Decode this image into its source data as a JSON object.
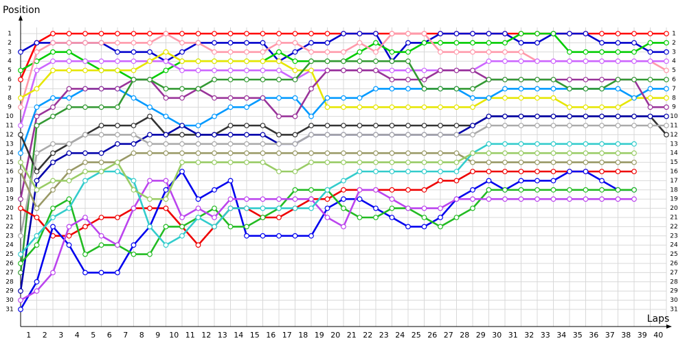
{
  "chart_data": {
    "type": "line",
    "y_label": "Position",
    "x_label": "Laps",
    "x": [
      0,
      1,
      2,
      3,
      4,
      5,
      6,
      7,
      8,
      9,
      10,
      11,
      12,
      13,
      14,
      15,
      16,
      17,
      18,
      19,
      20,
      21,
      22,
      23,
      24,
      25,
      26,
      27,
      28,
      29,
      30,
      31,
      32,
      33,
      34,
      35,
      36,
      37,
      38,
      39,
      40
    ],
    "xlim": [
      0,
      40
    ],
    "xticks": [
      1,
      2,
      3,
      4,
      5,
      6,
      7,
      8,
      9,
      10,
      11,
      12,
      13,
      14,
      15,
      16,
      17,
      18,
      19,
      20,
      21,
      22,
      23,
      24,
      25,
      26,
      27,
      28,
      29,
      30,
      31,
      32,
      33,
      34,
      35,
      36,
      37,
      38,
      39,
      40
    ],
    "ylim": [
      31,
      1
    ],
    "yticks": [
      1,
      2,
      3,
      4,
      5,
      6,
      7,
      8,
      9,
      10,
      11,
      12,
      13,
      14,
      15,
      16,
      17,
      18,
      19,
      20,
      21,
      22,
      23,
      24,
      25,
      26,
      27,
      28,
      29,
      30,
      31
    ],
    "grid": true,
    "series": [
      {
        "color": "#ff0000",
        "values": [
          6,
          2,
          1,
          1,
          1,
          1,
          1,
          1,
          1,
          1,
          1,
          1,
          1,
          1,
          1,
          1,
          1,
          1,
          1,
          1,
          1,
          1,
          1,
          1,
          1,
          1,
          1,
          1,
          1,
          1,
          1,
          1,
          1,
          1,
          1,
          1,
          1,
          1,
          1,
          1,
          1
        ]
      },
      {
        "color": "#0000cc",
        "values": [
          3,
          2,
          2,
          2,
          2,
          2,
          3,
          3,
          3,
          4,
          3,
          2,
          2,
          2,
          2,
          2,
          4,
          3,
          2,
          2,
          1,
          1,
          1,
          4,
          2,
          2,
          1,
          1,
          1,
          1,
          1,
          2,
          2,
          1,
          1,
          1,
          2,
          2,
          2,
          3,
          3
        ]
      },
      {
        "color": "#00cc00",
        "values": [
          5,
          4,
          3,
          3,
          4,
          5,
          5,
          6,
          6,
          5,
          4,
          4,
          4,
          4,
          4,
          4,
          3,
          4,
          4,
          4,
          4,
          3,
          2,
          3,
          3,
          2,
          2,
          2,
          2,
          2,
          2,
          1,
          1,
          1,
          3,
          3,
          3,
          3,
          3,
          2,
          2
        ]
      },
      {
        "color": "#ff99aa",
        "values": [
          9,
          3,
          2,
          2,
          2,
          2,
          2,
          2,
          2,
          1,
          2,
          2,
          3,
          3,
          3,
          3,
          2,
          2,
          3,
          3,
          3,
          2,
          3,
          1,
          1,
          1,
          3,
          3,
          3,
          3,
          3,
          3,
          4,
          4,
          4,
          4,
          4,
          4,
          4,
          4,
          5
        ]
      },
      {
        "color": "#cc66ff",
        "values": [
          11,
          5,
          4,
          4,
          4,
          4,
          4,
          4,
          4,
          4,
          5,
          5,
          5,
          5,
          5,
          5,
          5,
          6,
          5,
          5,
          5,
          5,
          5,
          5,
          5,
          5,
          5,
          5,
          5,
          4,
          4,
          4,
          4,
          4,
          4,
          4,
          4,
          4,
          4,
          4,
          4
        ]
      },
      {
        "color": "#e6e600",
        "values": [
          8,
          7,
          5,
          5,
          5,
          5,
          5,
          5,
          4,
          3,
          4,
          4,
          4,
          4,
          4,
          4,
          4,
          5,
          5,
          9,
          9,
          9,
          9,
          9,
          9,
          9,
          9,
          9,
          9,
          8,
          8,
          8,
          8,
          8,
          9,
          9,
          9,
          9,
          8,
          8,
          8
        ]
      },
      {
        "color": "#0099ff",
        "values": [
          14,
          9,
          8,
          8,
          7,
          7,
          7,
          8,
          9,
          10,
          11,
          11,
          10,
          9,
          9,
          8,
          8,
          8,
          10,
          8,
          8,
          8,
          7,
          7,
          7,
          7,
          7,
          7,
          8,
          8,
          7,
          7,
          7,
          7,
          7,
          7,
          7,
          7,
          8,
          7,
          7
        ]
      },
      {
        "color": "#993399",
        "values": [
          19,
          10,
          9,
          7,
          7,
          7,
          7,
          6,
          6,
          8,
          8,
          7,
          8,
          8,
          8,
          8,
          10,
          10,
          7,
          5,
          5,
          5,
          5,
          6,
          6,
          6,
          5,
          5,
          5,
          6,
          6,
          6,
          6,
          6,
          6,
          6,
          6,
          6,
          6,
          9,
          9
        ]
      },
      {
        "color": "#339933",
        "values": [
          27,
          11,
          10,
          9,
          9,
          9,
          9,
          6,
          6,
          7,
          7,
          7,
          6,
          6,
          6,
          6,
          6,
          6,
          4,
          4,
          4,
          4,
          4,
          4,
          4,
          7,
          7,
          7,
          7,
          6,
          6,
          6,
          6,
          6,
          7,
          7,
          7,
          6,
          6,
          6,
          6
        ]
      },
      {
        "color": "#333333",
        "values": [
          12,
          16,
          14,
          13,
          12,
          11,
          11,
          11,
          10,
          12,
          12,
          12,
          12,
          11,
          11,
          11,
          12,
          12,
          11,
          11,
          11,
          11,
          11,
          11,
          11,
          11,
          11,
          11,
          11,
          10,
          10,
          10,
          10,
          10,
          10,
          10,
          10,
          10,
          10,
          10,
          12
        ]
      },
      {
        "color": "#0000aa",
        "values": [
          29,
          17,
          15,
          14,
          14,
          14,
          13,
          13,
          12,
          12,
          11,
          12,
          12,
          12,
          12,
          12,
          13,
          13,
          12,
          12,
          12,
          12,
          12,
          12,
          12,
          12,
          12,
          12,
          11,
          10,
          10,
          10,
          10,
          10,
          10,
          10,
          10,
          10,
          10,
          10,
          10
        ]
      },
      {
        "color": "#aaaaaa",
        "values": [
          23,
          14,
          13,
          13,
          12,
          12,
          12,
          12,
          13,
          13,
          13,
          13,
          13,
          13,
          13,
          13,
          13,
          13,
          12,
          12,
          12,
          12,
          12,
          12,
          12,
          12,
          12,
          12,
          12,
          11,
          11,
          11,
          11,
          11,
          11,
          11,
          11,
          11,
          11,
          11,
          11
        ]
      },
      {
        "color": "#999966",
        "values": [
          16,
          20,
          18,
          16,
          15,
          15,
          15,
          14,
          14,
          14,
          14,
          14,
          14,
          14,
          14,
          14,
          14,
          14,
          14,
          14,
          14,
          14,
          14,
          14,
          14,
          14,
          14,
          14,
          15,
          15,
          15,
          15,
          15,
          15,
          15,
          15,
          15,
          15,
          15,
          null,
          null
        ]
      },
      {
        "color": "#ee0000",
        "values": [
          20,
          21,
          23,
          23,
          22,
          21,
          21,
          20,
          20,
          20,
          22,
          24,
          22,
          20,
          20,
          21,
          21,
          20,
          19,
          19,
          18,
          18,
          18,
          18,
          18,
          18,
          17,
          17,
          16,
          16,
          16,
          16,
          16,
          16,
          16,
          16,
          16,
          16,
          16,
          null,
          null
        ]
      },
      {
        "color": "#0000ee",
        "values": [
          31,
          28,
          22,
          24,
          27,
          27,
          27,
          24,
          22,
          18,
          16,
          19,
          18,
          17,
          23,
          23,
          23,
          23,
          23,
          20,
          19,
          19,
          20,
          21,
          22,
          22,
          21,
          19,
          18,
          17,
          18,
          17,
          17,
          17,
          16,
          16,
          17,
          18,
          18,
          null,
          null
        ]
      },
      {
        "color": "#22bb22",
        "values": [
          26,
          24,
          20,
          19,
          25,
          24,
          24,
          25,
          25,
          22,
          22,
          21,
          20,
          22,
          22,
          21,
          20,
          18,
          18,
          18,
          20,
          21,
          21,
          20,
          20,
          21,
          22,
          21,
          20,
          18,
          18,
          18,
          18,
          18,
          18,
          18,
          18,
          18,
          18,
          null,
          null
        ]
      },
      {
        "color": "#bb44ee",
        "values": [
          30,
          29,
          27,
          22,
          21,
          23,
          24,
          20,
          17,
          17,
          21,
          20,
          21,
          19,
          19,
          19,
          19,
          19,
          19,
          21,
          22,
          18,
          18,
          19,
          20,
          20,
          20,
          19,
          19,
          19,
          19,
          19,
          19,
          19,
          19,
          19,
          19,
          19,
          19,
          null,
          null
        ]
      },
      {
        "color": "#33cccc",
        "values": [
          25,
          23,
          21,
          20,
          17,
          16,
          16,
          17,
          22,
          24,
          23,
          21,
          22,
          20,
          20,
          20,
          20,
          20,
          20,
          18,
          17,
          16,
          16,
          16,
          16,
          16,
          16,
          16,
          14,
          13,
          13,
          13,
          13,
          13,
          13,
          13,
          13,
          13,
          13,
          null,
          null
        ]
      },
      {
        "color": "#99cc66",
        "values": [
          15,
          18,
          17,
          17,
          16,
          16,
          15,
          18,
          19,
          19,
          15,
          15,
          15,
          15,
          15,
          15,
          16,
          16,
          15,
          15,
          15,
          15,
          15,
          15,
          15,
          15,
          15,
          15,
          14,
          14,
          14,
          14,
          14,
          14,
          14,
          14,
          14,
          14,
          14,
          null,
          null
        ]
      }
    ]
  }
}
